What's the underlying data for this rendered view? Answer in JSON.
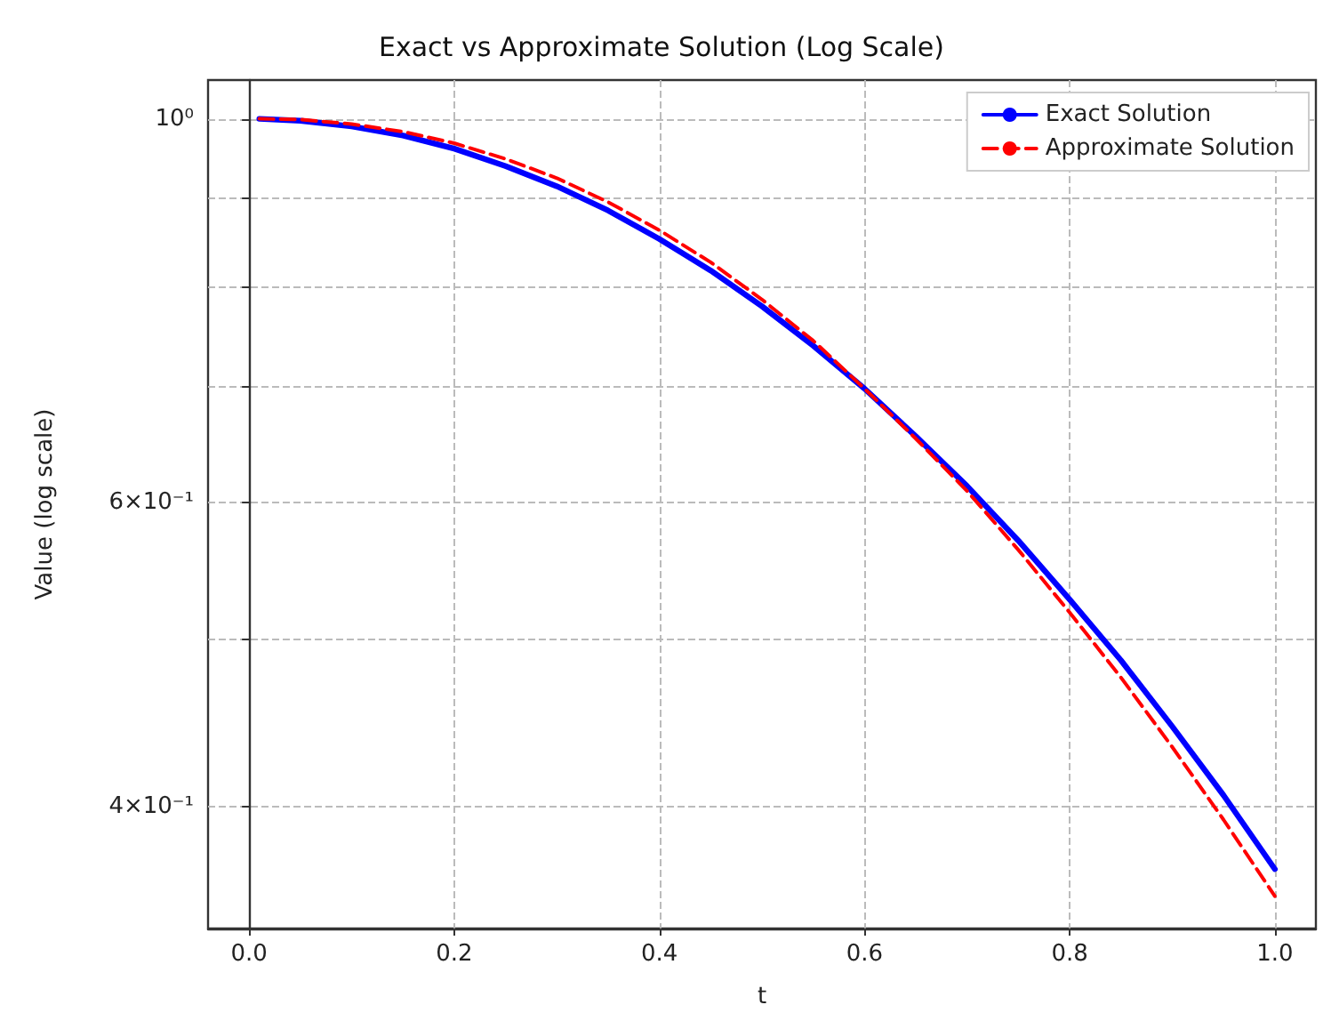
{
  "chart_data": {
    "type": "line",
    "title": "Exact vs Approximate Solution (Log Scale)",
    "xlabel": "t",
    "ylabel": "Value (log scale)",
    "x": [
      0.01,
      0.05,
      0.1,
      0.15,
      0.2,
      0.25,
      0.3,
      0.35,
      0.4,
      0.45,
      0.5,
      0.55,
      0.6,
      0.65,
      0.7,
      0.75,
      0.8,
      0.85,
      0.9,
      0.95,
      1.0
    ],
    "series": [
      {
        "name": "Exact Solution",
        "color": "#0000ff",
        "line_style": "solid",
        "values": [
          1.0,
          0.9975,
          0.99,
          0.978,
          0.961,
          0.939,
          0.914,
          0.885,
          0.852,
          0.817,
          0.779,
          0.739,
          0.698,
          0.655,
          0.613,
          0.57,
          0.527,
          0.486,
          0.445,
          0.406,
          0.368
        ]
      },
      {
        "name": "Approximate Solution",
        "color": "#ff0000",
        "line_style": "dashed",
        "values": [
          1.0,
          0.999,
          0.993,
          0.983,
          0.968,
          0.948,
          0.924,
          0.895,
          0.862,
          0.826,
          0.786,
          0.744,
          0.698,
          0.653,
          0.609,
          0.563,
          0.518,
          0.475,
          0.433,
          0.393,
          0.355
        ]
      }
    ],
    "log": "y",
    "xlim": [
      -0.04,
      1.04
    ],
    "xticks": [
      {
        "value": 0,
        "label": "0.0"
      },
      0.2,
      0.4,
      0.6,
      0.8,
      {
        "value": 1,
        "label": "1.0"
      }
    ],
    "ylim": [
      0.34,
      1.053
    ],
    "yticks": [
      {
        "value": 0.4,
        "label": "4×10⁻¹"
      },
      {
        "value": 0.5,
        "label": null
      },
      {
        "value": 0.6,
        "label": "6×10⁻¹"
      },
      {
        "value": 0.7,
        "label": null
      },
      {
        "value": 0.8,
        "label": null
      },
      {
        "value": 0.9,
        "label": null
      },
      {
        "value": 1,
        "label": "10⁰"
      }
    ],
    "grid": true,
    "legend": "top right",
    "marker": "none"
  }
}
